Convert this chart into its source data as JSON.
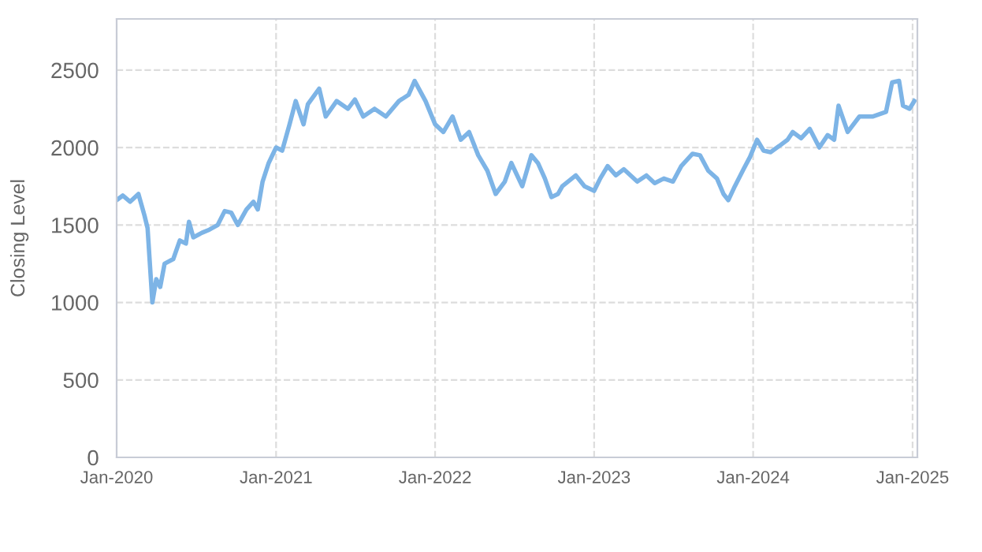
{
  "chart_data": {
    "type": "line",
    "ylabel": "Closing Level",
    "xlim": [
      "2020-01-01",
      "2025-01-12"
    ],
    "ylim": [
      0,
      2830
    ],
    "xticks": [
      {
        "value": "2020-01",
        "label": "Jan-2020"
      },
      {
        "value": "2021-01",
        "label": "Jan-2021"
      },
      {
        "value": "2022-01",
        "label": "Jan-2022"
      },
      {
        "value": "2023-01",
        "label": "Jan-2023"
      },
      {
        "value": "2024-01",
        "label": "Jan-2024"
      },
      {
        "value": "2025-01",
        "label": "Jan-2025"
      }
    ],
    "yticks": [
      0,
      500,
      1000,
      1500,
      2000,
      2500
    ],
    "grid": true,
    "marker": "none",
    "line_style": "solid",
    "x": [
      "2020-01-01",
      "2020-01-15",
      "2020-02-01",
      "2020-02-20",
      "2020-03-05",
      "2020-03-12",
      "2020-03-23",
      "2020-04-01",
      "2020-04-10",
      "2020-04-20",
      "2020-05-10",
      "2020-05-25",
      "2020-06-08",
      "2020-06-15",
      "2020-06-25",
      "2020-07-15",
      "2020-08-01",
      "2020-08-20",
      "2020-09-05",
      "2020-09-20",
      "2020-10-05",
      "2020-10-25",
      "2020-11-10",
      "2020-11-20",
      "2020-12-01",
      "2020-12-15",
      "2021-01-01",
      "2021-01-15",
      "2021-02-01",
      "2021-02-15",
      "2021-03-05",
      "2021-03-15",
      "2021-04-10",
      "2021-04-25",
      "2021-05-20",
      "2021-06-15",
      "2021-07-01",
      "2021-07-20",
      "2021-08-15",
      "2021-09-10",
      "2021-10-10",
      "2021-11-01",
      "2021-11-15",
      "2021-12-10",
      "2022-01-01",
      "2022-01-20",
      "2022-02-10",
      "2022-03-01",
      "2022-03-20",
      "2022-04-10",
      "2022-05-01",
      "2022-05-20",
      "2022-06-10",
      "2022-06-25",
      "2022-07-20",
      "2022-08-10",
      "2022-08-25",
      "2022-09-10",
      "2022-09-25",
      "2022-10-10",
      "2022-10-20",
      "2022-11-20",
      "2022-12-10",
      "2023-01-01",
      "2023-01-15",
      "2023-02-01",
      "2023-02-20",
      "2023-03-10",
      "2023-04-10",
      "2023-05-01",
      "2023-05-20",
      "2023-06-10",
      "2023-07-01",
      "2023-07-20",
      "2023-08-15",
      "2023-09-01",
      "2023-09-20",
      "2023-10-10",
      "2023-10-25",
      "2023-11-05",
      "2023-11-20",
      "2023-12-10",
      "2023-12-25",
      "2024-01-10",
      "2024-01-25",
      "2024-02-10",
      "2024-03-01",
      "2024-03-20",
      "2024-04-01",
      "2024-04-20",
      "2024-05-10",
      "2024-06-01",
      "2024-06-20",
      "2024-07-05",
      "2024-07-15",
      "2024-08-05",
      "2024-09-01",
      "2024-10-01",
      "2024-11-01",
      "2024-11-15",
      "2024-12-01",
      "2024-12-10",
      "2024-12-25",
      "2025-01-05"
    ],
    "series": [
      {
        "color": "#7db4e6",
        "values": [
          1660,
          1690,
          1650,
          1700,
          1560,
          1480,
          1000,
          1150,
          1100,
          1250,
          1280,
          1400,
          1380,
          1520,
          1420,
          1450,
          1470,
          1500,
          1590,
          1580,
          1500,
          1600,
          1650,
          1600,
          1780,
          1900,
          2000,
          1980,
          2150,
          2300,
          2150,
          2280,
          2380,
          2200,
          2300,
          2250,
          2310,
          2200,
          2250,
          2200,
          2300,
          2340,
          2430,
          2300,
          2150,
          2100,
          2200,
          2050,
          2100,
          1950,
          1850,
          1700,
          1780,
          1900,
          1750,
          1950,
          1900,
          1800,
          1680,
          1700,
          1750,
          1820,
          1750,
          1720,
          1800,
          1880,
          1820,
          1860,
          1780,
          1820,
          1770,
          1800,
          1780,
          1880,
          1960,
          1950,
          1850,
          1800,
          1700,
          1660,
          1750,
          1860,
          1940,
          2050,
          1980,
          1970,
          2010,
          2050,
          2100,
          2060,
          2120,
          2000,
          2080,
          2050,
          2270,
          2100,
          2200,
          2200,
          2230,
          2420,
          2430,
          2270,
          2250,
          2300
        ]
      }
    ]
  }
}
